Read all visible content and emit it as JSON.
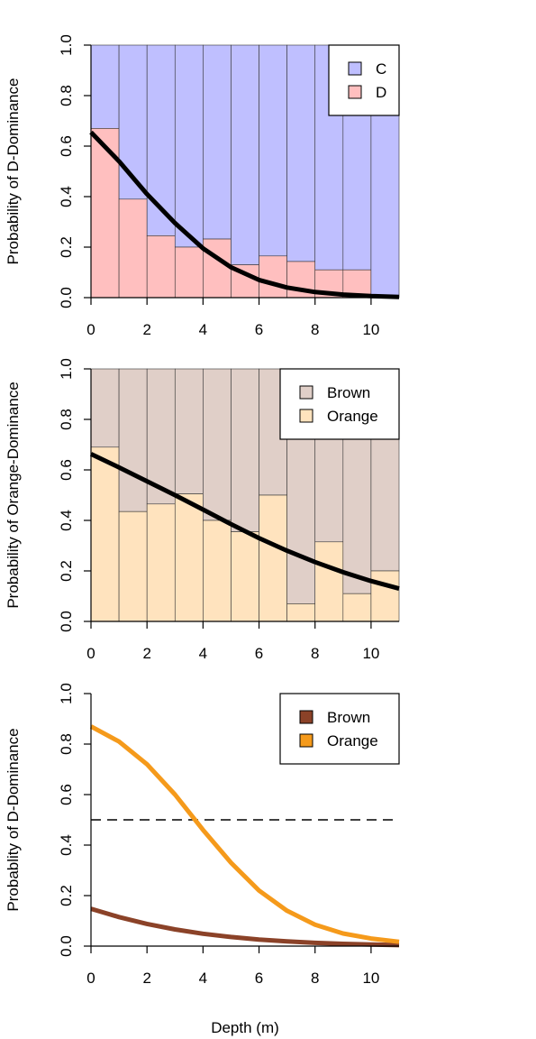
{
  "xlabel": "Depth (m)",
  "chart_data": [
    {
      "type": "bar",
      "ylabel": "Probability of D-Dominance",
      "xlim": [
        0,
        11
      ],
      "ylim": [
        0,
        1
      ],
      "xticks": [
        "0",
        "2",
        "4",
        "6",
        "8",
        "10"
      ],
      "yticks": [
        "0.0",
        "0.2",
        "0.4",
        "0.6",
        "0.8",
        "1.0"
      ],
      "legend": {
        "position": "top-right",
        "entries": [
          {
            "label": "C",
            "color": "#bfbfff"
          },
          {
            "label": "D",
            "color": "#ffbfbf"
          }
        ]
      },
      "bin_edges": [
        0,
        1,
        2,
        3,
        4,
        5,
        6,
        7,
        8,
        9,
        10,
        11
      ],
      "stacked_bars": {
        "lower_label": "D",
        "upper_label": "C",
        "lower_color": "#ffbfbf",
        "upper_color": "#bfbfff",
        "lower_values": [
          0.67,
          0.39,
          0.245,
          0.2,
          0.232,
          0.13,
          0.165,
          0.143,
          0.11,
          0.11,
          0.0
        ]
      },
      "curve": {
        "color": "#000000",
        "x": [
          0,
          1,
          2,
          3,
          4,
          5,
          6,
          7,
          8,
          9,
          10,
          11
        ],
        "y": [
          0.655,
          0.54,
          0.41,
          0.295,
          0.195,
          0.12,
          0.07,
          0.04,
          0.022,
          0.012,
          0.006,
          0.003
        ]
      }
    },
    {
      "type": "bar",
      "ylabel": "Probability of Orange-Dominance",
      "xlim": [
        0,
        11
      ],
      "ylim": [
        0,
        1
      ],
      "xticks": [
        "0",
        "2",
        "4",
        "6",
        "8",
        "10"
      ],
      "yticks": [
        "0.0",
        "0.2",
        "0.4",
        "0.6",
        "0.8",
        "1.0"
      ],
      "legend": {
        "position": "top-right",
        "entries": [
          {
            "label": "Brown",
            "color": "#e0cfc8"
          },
          {
            "label": "Orange",
            "color": "#ffe3be"
          }
        ]
      },
      "bin_edges": [
        0,
        1,
        2,
        3,
        4,
        5,
        6,
        7,
        8,
        9,
        10,
        11
      ],
      "stacked_bars": {
        "lower_label": "Orange",
        "upper_label": "Brown",
        "lower_color": "#ffe3be",
        "upper_color": "#e0cfc8",
        "lower_values": [
          0.69,
          0.435,
          0.465,
          0.505,
          0.4,
          0.355,
          0.5,
          0.07,
          0.315,
          0.11,
          0.2
        ]
      },
      "curve": {
        "color": "#000000",
        "x": [
          0,
          1,
          2,
          3,
          4,
          5,
          6,
          7,
          8,
          9,
          10,
          11
        ],
        "y": [
          0.663,
          0.61,
          0.555,
          0.5,
          0.443,
          0.385,
          0.33,
          0.28,
          0.235,
          0.195,
          0.16,
          0.13
        ]
      }
    },
    {
      "type": "line",
      "ylabel": "Probablity of D-Dominance",
      "xlim": [
        0,
        11
      ],
      "ylim": [
        0,
        1
      ],
      "xticks": [
        "0",
        "2",
        "4",
        "6",
        "8",
        "10"
      ],
      "yticks": [
        "0.0",
        "0.2",
        "0.4",
        "0.6",
        "0.8",
        "1.0"
      ],
      "legend": {
        "position": "top-right",
        "entries": [
          {
            "label": "Brown",
            "color": "#8b4228"
          },
          {
            "label": "Orange",
            "color": "#f59a1b"
          }
        ]
      },
      "hline": {
        "y": 0.5,
        "style": "dashed",
        "color": "#000000"
      },
      "series": [
        {
          "name": "Brown",
          "color": "#8b4228",
          "x": [
            0,
            1,
            2,
            3,
            4,
            5,
            6,
            7,
            8,
            9,
            10,
            11
          ],
          "values": [
            0.148,
            0.115,
            0.088,
            0.066,
            0.049,
            0.036,
            0.026,
            0.019,
            0.013,
            0.009,
            0.006,
            0.004
          ]
        },
        {
          "name": "Orange",
          "color": "#f59a1b",
          "x": [
            0,
            1,
            2,
            3,
            4,
            5,
            6,
            7,
            8,
            9,
            10,
            11
          ],
          "values": [
            0.87,
            0.81,
            0.72,
            0.6,
            0.46,
            0.33,
            0.22,
            0.14,
            0.085,
            0.05,
            0.03,
            0.017
          ]
        }
      ]
    }
  ]
}
